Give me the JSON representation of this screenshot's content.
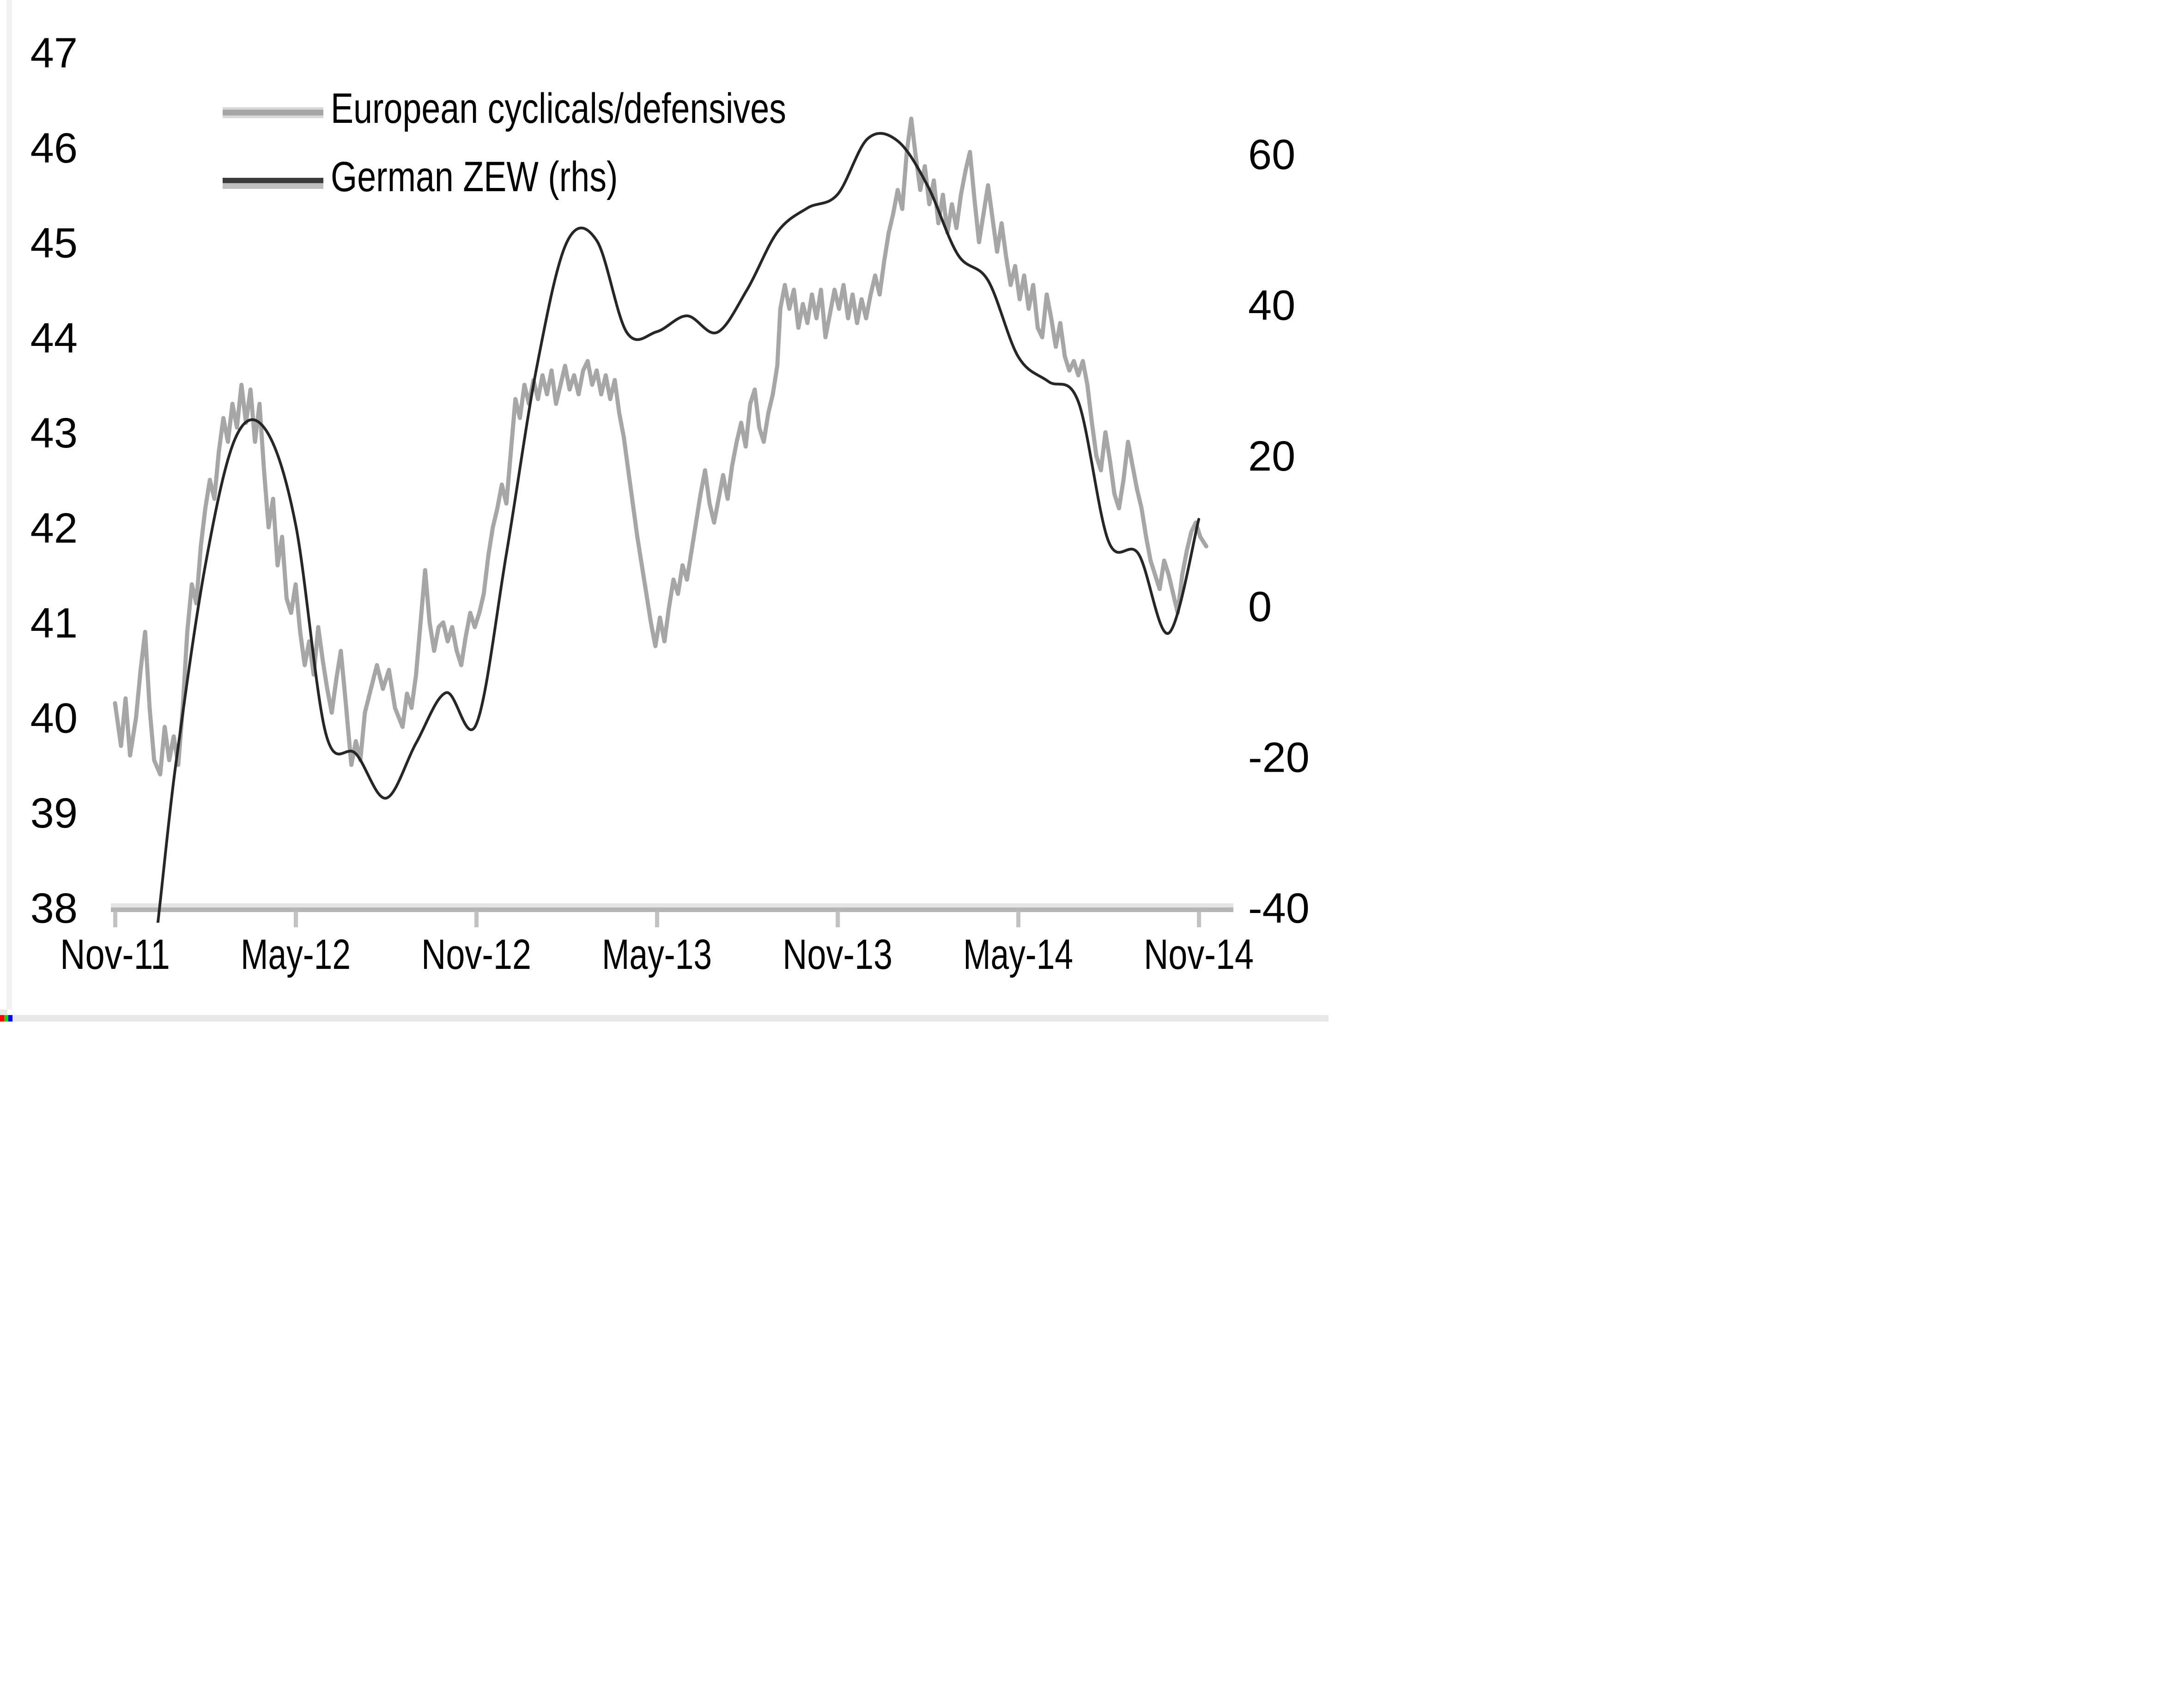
{
  "chart_data": {
    "type": "line",
    "title": "",
    "x_unit": "months since Nov-2011",
    "grid": "off",
    "legend_position": "top-left",
    "legend": [
      {
        "label": "European cyclicals/defensives",
        "color": "#a6a6a6",
        "axis": "left"
      },
      {
        "label": "German ZEW (rhs)",
        "color": "#3a3a3a",
        "axis": "right"
      }
    ],
    "x_axis": {
      "tick_labels": [
        "Nov-11",
        "May-12",
        "Nov-12",
        "May-13",
        "Nov-13",
        "May-14",
        "Nov-14"
      ],
      "tick_months": [
        0,
        6,
        12,
        18,
        24,
        30,
        36
      ]
    },
    "left_axis": {
      "range": [
        38,
        47
      ],
      "ticks": [
        47,
        46,
        45,
        44,
        43,
        42,
        41,
        40,
        39,
        38
      ]
    },
    "right_axis": {
      "range": [
        -40,
        60
      ],
      "ticks": [
        60,
        40,
        20,
        0,
        -20,
        -40
      ]
    },
    "axis_colors": {
      "axis_band_light": "#e4e4e4",
      "axis_band_dark": "#b5b5b5",
      "tick": "#c2c2c2",
      "text": "#000000"
    },
    "series": [
      {
        "name": "European cyclicals/defensives",
        "axis": "left",
        "style": "noisy",
        "color": "#a6a6a6",
        "width": 9,
        "points": [
          [
            0,
            40.15
          ],
          [
            0.2,
            39.7
          ],
          [
            0.35,
            40.2
          ],
          [
            0.5,
            39.6
          ],
          [
            0.7,
            40.0
          ],
          [
            0.85,
            40.5
          ],
          [
            1.0,
            40.9
          ],
          [
            1.15,
            40.1
          ],
          [
            1.3,
            39.55
          ],
          [
            1.5,
            39.4
          ],
          [
            1.65,
            39.9
          ],
          [
            1.8,
            39.55
          ],
          [
            1.95,
            39.8
          ],
          [
            2.1,
            39.5
          ],
          [
            2.25,
            40.1
          ],
          [
            2.4,
            40.9
          ],
          [
            2.55,
            41.4
          ],
          [
            2.7,
            41.2
          ],
          [
            2.85,
            41.8
          ],
          [
            3.0,
            42.2
          ],
          [
            3.15,
            42.5
          ],
          [
            3.3,
            42.3
          ],
          [
            3.45,
            42.8
          ],
          [
            3.6,
            43.15
          ],
          [
            3.75,
            42.9
          ],
          [
            3.9,
            43.3
          ],
          [
            4.05,
            43.05
          ],
          [
            4.2,
            43.5
          ],
          [
            4.35,
            43.1
          ],
          [
            4.5,
            43.45
          ],
          [
            4.65,
            42.9
          ],
          [
            4.8,
            43.3
          ],
          [
            4.95,
            42.6
          ],
          [
            5.1,
            42.0
          ],
          [
            5.25,
            42.3
          ],
          [
            5.4,
            41.6
          ],
          [
            5.55,
            41.9
          ],
          [
            5.7,
            41.25
          ],
          [
            5.85,
            41.1
          ],
          [
            6.0,
            41.4
          ],
          [
            6.15,
            40.9
          ],
          [
            6.3,
            40.55
          ],
          [
            6.45,
            40.8
          ],
          [
            6.6,
            40.45
          ],
          [
            6.75,
            40.95
          ],
          [
            6.9,
            40.6
          ],
          [
            7.05,
            40.3
          ],
          [
            7.2,
            40.05
          ],
          [
            7.35,
            40.4
          ],
          [
            7.5,
            40.7
          ],
          [
            7.65,
            40.2
          ],
          [
            7.85,
            39.5
          ],
          [
            8.0,
            39.75
          ],
          [
            8.15,
            39.55
          ],
          [
            8.3,
            40.05
          ],
          [
            8.5,
            40.3
          ],
          [
            8.7,
            40.55
          ],
          [
            8.9,
            40.3
          ],
          [
            9.1,
            40.5
          ],
          [
            9.3,
            40.1
          ],
          [
            9.55,
            39.9
          ],
          [
            9.7,
            40.25
          ],
          [
            9.85,
            40.1
          ],
          [
            10.0,
            40.45
          ],
          [
            10.15,
            41.0
          ],
          [
            10.3,
            41.55
          ],
          [
            10.45,
            41.0
          ],
          [
            10.6,
            40.7
          ],
          [
            10.75,
            40.95
          ],
          [
            10.9,
            41.0
          ],
          [
            11.05,
            40.8
          ],
          [
            11.2,
            40.95
          ],
          [
            11.35,
            40.7
          ],
          [
            11.5,
            40.55
          ],
          [
            11.65,
            40.85
          ],
          [
            11.8,
            41.1
          ],
          [
            11.95,
            40.95
          ],
          [
            12.1,
            41.1
          ],
          [
            12.25,
            41.3
          ],
          [
            12.4,
            41.7
          ],
          [
            12.55,
            42.0
          ],
          [
            12.7,
            42.2
          ],
          [
            12.85,
            42.45
          ],
          [
            13.0,
            42.25
          ],
          [
            13.15,
            42.8
          ],
          [
            13.3,
            43.35
          ],
          [
            13.45,
            43.15
          ],
          [
            13.6,
            43.5
          ],
          [
            13.75,
            43.3
          ],
          [
            13.9,
            43.55
          ],
          [
            14.05,
            43.35
          ],
          [
            14.2,
            43.6
          ],
          [
            14.35,
            43.4
          ],
          [
            14.5,
            43.65
          ],
          [
            14.65,
            43.3
          ],
          [
            14.8,
            43.5
          ],
          [
            14.95,
            43.7
          ],
          [
            15.1,
            43.45
          ],
          [
            15.25,
            43.6
          ],
          [
            15.4,
            43.4
          ],
          [
            15.55,
            43.65
          ],
          [
            15.7,
            43.75
          ],
          [
            15.85,
            43.5
          ],
          [
            16.0,
            43.65
          ],
          [
            16.15,
            43.4
          ],
          [
            16.3,
            43.6
          ],
          [
            16.45,
            43.35
          ],
          [
            16.6,
            43.55
          ],
          [
            16.75,
            43.2
          ],
          [
            16.9,
            42.95
          ],
          [
            17.05,
            42.6
          ],
          [
            17.2,
            42.25
          ],
          [
            17.35,
            41.9
          ],
          [
            17.5,
            41.6
          ],
          [
            17.65,
            41.3
          ],
          [
            17.8,
            41.0
          ],
          [
            17.95,
            40.75
          ],
          [
            18.1,
            41.05
          ],
          [
            18.25,
            40.8
          ],
          [
            18.4,
            41.15
          ],
          [
            18.55,
            41.45
          ],
          [
            18.7,
            41.3
          ],
          [
            18.85,
            41.6
          ],
          [
            19.0,
            41.45
          ],
          [
            19.15,
            41.75
          ],
          [
            19.3,
            42.05
          ],
          [
            19.45,
            42.35
          ],
          [
            19.6,
            42.6
          ],
          [
            19.75,
            42.25
          ],
          [
            19.9,
            42.05
          ],
          [
            20.05,
            42.3
          ],
          [
            20.2,
            42.55
          ],
          [
            20.35,
            42.3
          ],
          [
            20.5,
            42.65
          ],
          [
            20.65,
            42.9
          ],
          [
            20.8,
            43.1
          ],
          [
            20.95,
            42.85
          ],
          [
            21.1,
            43.3
          ],
          [
            21.25,
            43.45
          ],
          [
            21.4,
            43.05
          ],
          [
            21.55,
            42.9
          ],
          [
            21.7,
            43.2
          ],
          [
            21.85,
            43.4
          ],
          [
            22.0,
            43.7
          ],
          [
            22.1,
            44.3
          ],
          [
            22.25,
            44.55
          ],
          [
            22.4,
            44.3
          ],
          [
            22.55,
            44.5
          ],
          [
            22.7,
            44.1
          ],
          [
            22.85,
            44.35
          ],
          [
            23.0,
            44.15
          ],
          [
            23.15,
            44.45
          ],
          [
            23.3,
            44.2
          ],
          [
            23.45,
            44.5
          ],
          [
            23.6,
            44.0
          ],
          [
            23.75,
            44.25
          ],
          [
            23.9,
            44.5
          ],
          [
            24.05,
            44.3
          ],
          [
            24.2,
            44.55
          ],
          [
            24.35,
            44.2
          ],
          [
            24.5,
            44.45
          ],
          [
            24.65,
            44.15
          ],
          [
            24.8,
            44.4
          ],
          [
            24.95,
            44.2
          ],
          [
            25.1,
            44.45
          ],
          [
            25.25,
            44.65
          ],
          [
            25.4,
            44.45
          ],
          [
            25.55,
            44.8
          ],
          [
            25.7,
            45.1
          ],
          [
            25.85,
            45.3
          ],
          [
            26.0,
            45.55
          ],
          [
            26.15,
            45.35
          ],
          [
            26.3,
            45.95
          ],
          [
            26.45,
            46.3
          ],
          [
            26.6,
            45.9
          ],
          [
            26.75,
            45.55
          ],
          [
            26.9,
            45.8
          ],
          [
            27.05,
            45.4
          ],
          [
            27.2,
            45.65
          ],
          [
            27.35,
            45.2
          ],
          [
            27.5,
            45.5
          ],
          [
            27.65,
            45.1
          ],
          [
            27.8,
            45.4
          ],
          [
            27.95,
            45.15
          ],
          [
            28.1,
            45.5
          ],
          [
            28.25,
            45.75
          ],
          [
            28.4,
            45.95
          ],
          [
            28.55,
            45.45
          ],
          [
            28.7,
            45.0
          ],
          [
            28.85,
            45.3
          ],
          [
            29.0,
            45.6
          ],
          [
            29.15,
            45.25
          ],
          [
            29.3,
            44.9
          ],
          [
            29.45,
            45.2
          ],
          [
            29.6,
            44.85
          ],
          [
            29.75,
            44.55
          ],
          [
            29.9,
            44.75
          ],
          [
            30.05,
            44.4
          ],
          [
            30.2,
            44.65
          ],
          [
            30.35,
            44.3
          ],
          [
            30.5,
            44.55
          ],
          [
            30.65,
            44.1
          ],
          [
            30.8,
            44.0
          ],
          [
            30.95,
            44.45
          ],
          [
            31.1,
            44.2
          ],
          [
            31.25,
            43.9
          ],
          [
            31.4,
            44.15
          ],
          [
            31.55,
            43.8
          ],
          [
            31.7,
            43.65
          ],
          [
            31.85,
            43.75
          ],
          [
            32.0,
            43.6
          ],
          [
            32.15,
            43.75
          ],
          [
            32.3,
            43.5
          ],
          [
            32.45,
            43.1
          ],
          [
            32.6,
            42.75
          ],
          [
            32.75,
            42.6
          ],
          [
            32.9,
            43.0
          ],
          [
            33.05,
            42.7
          ],
          [
            33.2,
            42.35
          ],
          [
            33.35,
            42.2
          ],
          [
            33.5,
            42.5
          ],
          [
            33.65,
            42.9
          ],
          [
            33.8,
            42.65
          ],
          [
            33.95,
            42.4
          ],
          [
            34.1,
            42.2
          ],
          [
            34.25,
            41.9
          ],
          [
            34.4,
            41.65
          ],
          [
            34.55,
            41.5
          ],
          [
            34.7,
            41.35
          ],
          [
            34.85,
            41.65
          ],
          [
            35.0,
            41.5
          ],
          [
            35.15,
            41.3
          ],
          [
            35.3,
            41.1
          ],
          [
            35.45,
            41.5
          ],
          [
            35.6,
            41.75
          ],
          [
            35.75,
            41.95
          ],
          [
            35.9,
            42.05
          ],
          [
            36.05,
            41.9
          ],
          [
            36.25,
            41.8
          ]
        ]
      },
      {
        "name": "German ZEW (rhs)",
        "axis": "right",
        "style": "smooth",
        "color": "#262626",
        "width": 6,
        "points": [
          [
            0,
            -55.0
          ],
          [
            1,
            -53.8
          ],
          [
            2,
            -21.6
          ],
          [
            3,
            5.4
          ],
          [
            4,
            22.3
          ],
          [
            5,
            23.4
          ],
          [
            6,
            10.8
          ],
          [
            7,
            -16.9
          ],
          [
            8,
            -19.6
          ],
          [
            9,
            -25.5
          ],
          [
            10,
            -18.2
          ],
          [
            11,
            -11.5
          ],
          [
            12,
            -15.7
          ],
          [
            13,
            6.9
          ],
          [
            14,
            31.5
          ],
          [
            15,
            48.2
          ],
          [
            16,
            48.5
          ],
          [
            17,
            36.3
          ],
          [
            18,
            36.4
          ],
          [
            19,
            38.5
          ],
          [
            20,
            36.3
          ],
          [
            21,
            42.0
          ],
          [
            22,
            49.6
          ],
          [
            23,
            52.8
          ],
          [
            24,
            54.6
          ],
          [
            25,
            62.0
          ],
          [
            26,
            61.7
          ],
          [
            27,
            55.7
          ],
          [
            28,
            46.6
          ],
          [
            29,
            43.2
          ],
          [
            30,
            33.1
          ],
          [
            31,
            29.8
          ],
          [
            32,
            27.1
          ],
          [
            33,
            8.6
          ],
          [
            34,
            6.9
          ],
          [
            35,
            -3.6
          ],
          [
            36,
            11.5
          ]
        ]
      }
    ]
  },
  "artifacts": {
    "corner_pixel_colors": [
      "#ff0000",
      "#00e000",
      "#0000ff"
    ],
    "border_color": "#e8e8e8"
  }
}
